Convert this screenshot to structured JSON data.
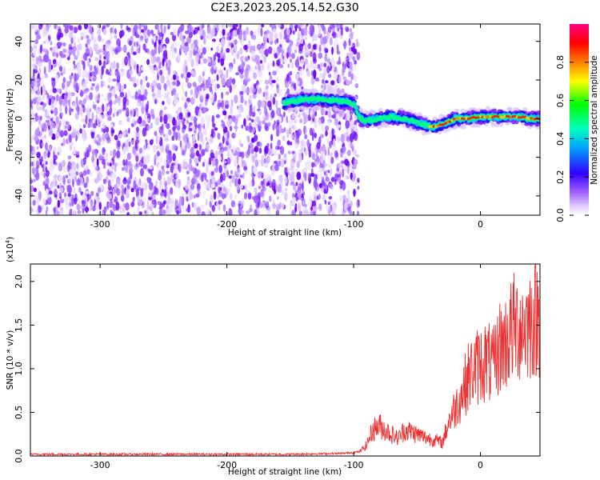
{
  "title": "C2E3.2023.205.14.52.G30",
  "chart_data": [
    {
      "type": "heatmap",
      "name": "spectrogram",
      "xlabel": "Height of straight line (km)",
      "ylabel": "Frequency (Hz)",
      "xlim": [
        -355,
        47
      ],
      "ylim": [
        -50,
        49
      ],
      "xticks": [
        -300,
        -200,
        -100,
        0
      ],
      "xtick_labels": [
        "-300",
        "-200",
        "-100",
        "0"
      ],
      "yticks": [
        -40,
        -20,
        0,
        20,
        40
      ],
      "ytick_labels": [
        "-40",
        "-20",
        "0",
        "20",
        "40"
      ],
      "colorbar": {
        "label": "Normalized spectral amplitude",
        "range": [
          0,
          1
        ],
        "ticks": [
          0.0,
          0.2,
          0.4,
          0.6,
          0.8
        ],
        "tick_labels": [
          "0.0",
          "0.2",
          "0.4",
          "0.6",
          "0.8"
        ],
        "colors": [
          "#ffffff",
          "#e0c8ff",
          "#a060ff",
          "#6a00ff",
          "#0000ff",
          "#00e0ff",
          "#00ff40",
          "#ffff00",
          "#ff8000",
          "#ff0000",
          "#ff0080"
        ]
      },
      "noise_region_x": [
        -355,
        -100
      ],
      "ridge": {
        "x": [
          -155,
          -140,
          -125,
          -110,
          -100,
          -95,
          -90,
          -80,
          -70,
          -60,
          -50,
          -45,
          -40,
          -35,
          -30,
          -20,
          -10,
          0,
          10,
          20,
          30,
          40,
          47
        ],
        "y": [
          8,
          10,
          10,
          9,
          8,
          0,
          -1,
          0,
          1,
          0,
          -2,
          -3,
          -4,
          -4,
          -3,
          0,
          0,
          1,
          1,
          1,
          1,
          0,
          0
        ]
      }
    },
    {
      "type": "line",
      "name": "snr",
      "xlabel": "Height of straight line (km)",
      "ylabel": "SNR (10 * v/v)",
      "y_multiplier": "(x10",
      "y_multiplier_exp": "4",
      "y_multiplier_close": ")",
      "xlim": [
        -355,
        47
      ],
      "ylim": [
        0,
        2.2
      ],
      "xticks": [
        -300,
        -200,
        -100,
        0
      ],
      "xtick_labels": [
        "-300",
        "-200",
        "-100",
        "0"
      ],
      "yticks": [
        0.0,
        0.5,
        1.0,
        1.5,
        2.0
      ],
      "ytick_labels": [
        "0.0",
        "0.5",
        "1.0",
        "1.5",
        "2.0"
      ],
      "series": [
        {
          "name": "SNR",
          "color": "#ee3030",
          "x": [
            -355,
            -300,
            -250,
            -200,
            -150,
            -110,
            -100,
            -95,
            -90,
            -85,
            -80,
            -75,
            -70,
            -65,
            -60,
            -55,
            -50,
            -45,
            -40,
            -35,
            -30,
            -25,
            -20,
            -15,
            -10,
            -5,
            0,
            5,
            10,
            15,
            20,
            25,
            30,
            35,
            40,
            47
          ],
          "y": [
            0.02,
            0.02,
            0.02,
            0.02,
            0.02,
            0.03,
            0.04,
            0.05,
            0.12,
            0.3,
            0.35,
            0.3,
            0.25,
            0.2,
            0.3,
            0.28,
            0.25,
            0.22,
            0.2,
            0.18,
            0.15,
            0.4,
            0.55,
            0.7,
            0.9,
            1.0,
            1.05,
            1.1,
            1.0,
            1.25,
            1.3,
            1.45,
            1.5,
            1.5,
            1.55,
            1.6
          ]
        }
      ]
    }
  ]
}
